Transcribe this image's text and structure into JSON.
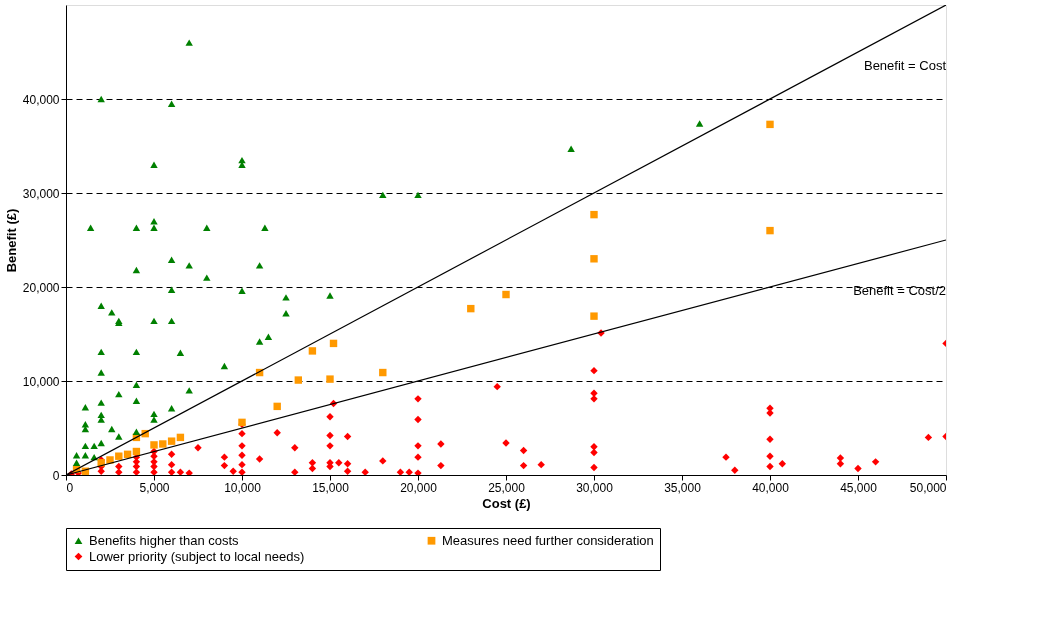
{
  "chart_data": {
    "type": "scatter",
    "xlabel": "Cost (£)",
    "ylabel": "Benefit (£)",
    "xlim": [
      0,
      50000
    ],
    "ylim": [
      0,
      50000
    ],
    "xticks": [
      0,
      {
        "value": 5000,
        "label": "5,000"
      },
      {
        "value": 10000,
        "label": "10,000"
      },
      {
        "value": 15000,
        "label": "15,000"
      },
      {
        "value": 20000,
        "label": "20,000"
      },
      {
        "value": 25000,
        "label": "25,000"
      },
      {
        "value": 30000,
        "label": "30,000"
      },
      {
        "value": 35000,
        "label": "35,000"
      },
      {
        "value": 40000,
        "label": "40,000"
      },
      {
        "value": 45000,
        "label": "45,000"
      },
      {
        "value": 50000,
        "label": "50,000"
      }
    ],
    "yticks": [
      0,
      {
        "value": 10000,
        "label": "10,000"
      },
      {
        "value": 20000,
        "label": "20,000"
      },
      {
        "value": 30000,
        "label": "30,000"
      },
      {
        "value": 40000,
        "label": "40,000"
      }
    ],
    "grid": "y",
    "legend": "bottom",
    "annotations": [
      "Benefit = Cost",
      "Benefit = Cost/2"
    ],
    "series": [
      {
        "name": "Benefits higher than costs",
        "color": "#008000",
        "marker": "triangle",
        "x": [
          7000,
          2000,
          6000,
          10000,
          10000,
          5000,
          28700,
          36000,
          20000,
          18000,
          1400,
          5000,
          5000,
          4000,
          8000,
          11300,
          6000,
          4000,
          7000,
          11000,
          8000,
          10000,
          6000,
          15000,
          2000,
          2600,
          3000,
          3000,
          12500,
          12500,
          11500,
          11000,
          5000,
          6000,
          6500,
          2000,
          4000,
          9000,
          2000,
          4000,
          4000,
          3000,
          7000,
          1100,
          1100,
          1100,
          2000,
          2000,
          2000,
          5000,
          5000,
          3000,
          4000,
          2600,
          2000,
          6000,
          1100,
          1600,
          600,
          1100,
          600,
          1600
        ],
        "values": [
          46000,
          40000,
          39500,
          33500,
          33000,
          33000,
          34700,
          37400,
          29800,
          29800,
          26300,
          26300,
          27000,
          26300,
          26300,
          26300,
          22900,
          21800,
          22300,
          22300,
          21000,
          19600,
          19700,
          19100,
          18000,
          17300,
          16400,
          16200,
          18900,
          17200,
          14700,
          14200,
          16400,
          16400,
          13000,
          13100,
          13100,
          11600,
          10900,
          9600,
          7900,
          8600,
          9000,
          7200,
          5400,
          4900,
          7700,
          6400,
          5900,
          6500,
          5900,
          4100,
          4600,
          4900,
          3400,
          7100,
          3100,
          3100,
          2100,
          2100,
          1300,
          1900
        ]
      },
      {
        "name": "Measures need further consideration",
        "color": "#ff9900",
        "marker": "square",
        "x": [
          40000,
          40000,
          30000,
          30000,
          30000,
          25000,
          23000,
          15200,
          14000,
          11000,
          18000,
          13200,
          15000,
          12000,
          10000,
          4000,
          4500,
          5000,
          5500,
          6000,
          6500,
          4000,
          3500,
          3000,
          2500,
          2000,
          1100,
          600
        ],
        "values": [
          37300,
          26000,
          27700,
          23000,
          16900,
          19200,
          17700,
          14000,
          13200,
          10900,
          10900,
          10100,
          10200,
          7300,
          5600,
          4000,
          4400,
          3200,
          3300,
          3600,
          4000,
          2500,
          2200,
          2000,
          1600,
          1300,
          400,
          600
        ]
      },
      {
        "name": "Lower priority (subject to local needs)",
        "color": "#ff0000",
        "marker": "diamond",
        "x": [
          300,
          700,
          2000,
          2000,
          2000,
          3000,
          3000,
          4000,
          4000,
          4000,
          4000,
          5000,
          5000,
          5000,
          5000,
          5000,
          6000,
          6000,
          6000,
          6500,
          7000,
          7500,
          9000,
          9000,
          9500,
          10000,
          10000,
          10000,
          10000,
          10000,
          10000,
          11000,
          12000,
          13000,
          13000,
          14000,
          14000,
          15000,
          15000,
          15000,
          15000,
          15000,
          15200,
          15500,
          16000,
          16000,
          16000,
          17000,
          18000,
          19000,
          19500,
          20000,
          20000,
          20000,
          20000,
          20000,
          21300,
          21300,
          24500,
          25000,
          26000,
          26000,
          27000,
          30000,
          30000,
          30000,
          30000,
          30000,
          30000,
          30400,
          37500,
          38000,
          40000,
          40000,
          40000,
          40000,
          40000,
          40700,
          44000,
          44000,
          45000,
          46000,
          49000,
          50000,
          50000
        ],
        "values": [
          100,
          200,
          400,
          900,
          1600,
          300,
          900,
          300,
          900,
          1400,
          1900,
          300,
          900,
          1400,
          2000,
          2500,
          300,
          1100,
          2200,
          300,
          200,
          2900,
          1900,
          1000,
          400,
          5400,
          4400,
          3100,
          2100,
          1100,
          300,
          1700,
          4500,
          2900,
          300,
          1300,
          700,
          3100,
          4200,
          6200,
          900,
          1300,
          7600,
          1300,
          4100,
          1200,
          400,
          300,
          1500,
          300,
          300,
          8100,
          5900,
          3100,
          1900,
          200,
          3300,
          1000,
          9400,
          3400,
          2600,
          1000,
          1100,
          11100,
          8700,
          8100,
          3000,
          2400,
          800,
          15100,
          1900,
          500,
          7100,
          6600,
          3800,
          2000,
          900,
          1200,
          1800,
          1200,
          700,
          1400,
          4000,
          14000,
          4100
        ]
      },
      {
        "type": "line",
        "color": "#000000",
        "line_style": "solid",
        "x": [
          0,
          50000
        ],
        "values": [
          0,
          50000
        ]
      },
      {
        "type": "line",
        "color": "#000000",
        "line_style": "solid",
        "x": [
          0,
          50000
        ],
        "values": [
          0,
          25000
        ]
      }
    ]
  }
}
